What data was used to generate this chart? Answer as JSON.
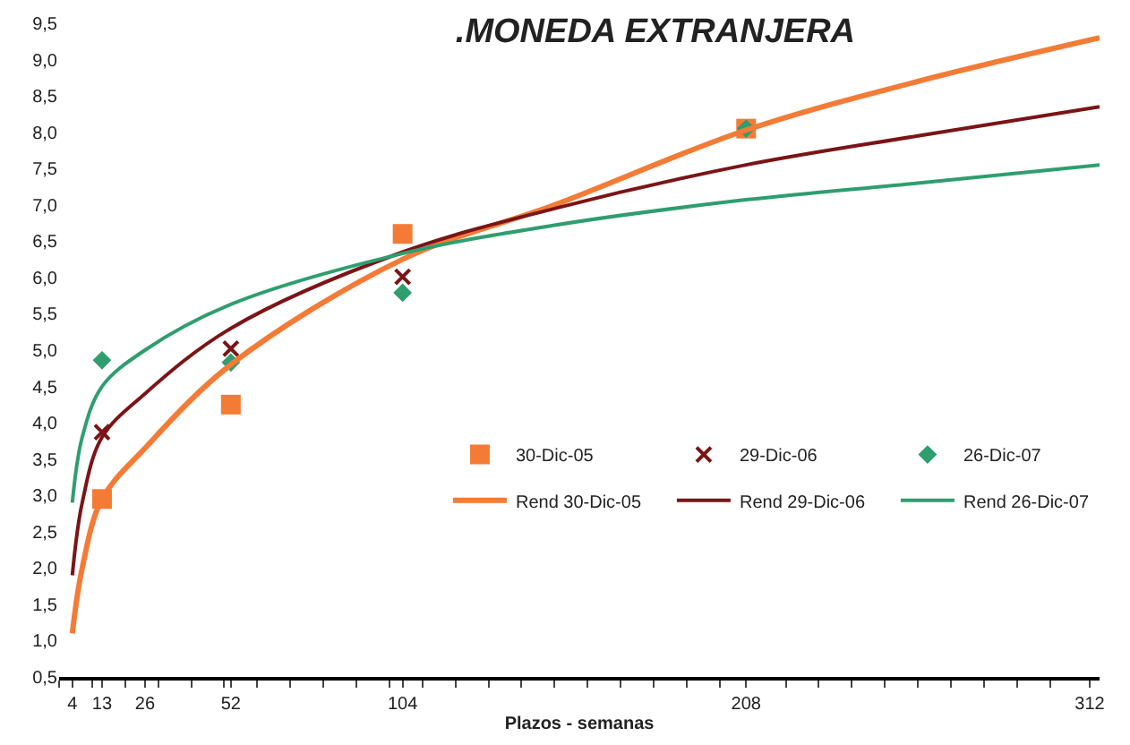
{
  "chart_data": {
    "type": "scatter",
    "title": ".MONEDA EXTRANJERA",
    "xlabel": "Plazos - semanas",
    "x": [
      13,
      52,
      104,
      208
    ],
    "xlim": [
      0,
      315
    ],
    "xticks": [
      {
        "value": 0,
        "label": null
      },
      4,
      {
        "value": 10,
        "label": null
      },
      13,
      {
        "value": 20,
        "label": null
      },
      26,
      {
        "value": 30,
        "label": null
      },
      {
        "value": 40,
        "label": null
      },
      {
        "value": 50,
        "label": null
      },
      52,
      {
        "value": 60,
        "label": null
      },
      {
        "value": 70,
        "label": null
      },
      {
        "value": 80,
        "label": null
      },
      {
        "value": 90,
        "label": null
      },
      {
        "value": 100,
        "label": null
      },
      104,
      {
        "value": 110,
        "label": null
      },
      {
        "value": 120,
        "label": null
      },
      {
        "value": 130,
        "label": null
      },
      {
        "value": 140,
        "label": null
      },
      {
        "value": 150,
        "label": null
      },
      {
        "value": 160,
        "label": null
      },
      {
        "value": 170,
        "label": null
      },
      {
        "value": 180,
        "label": null
      },
      {
        "value": 190,
        "label": null
      },
      {
        "value": 200,
        "label": null
      },
      208,
      {
        "value": 220,
        "label": null
      },
      {
        "value": 230,
        "label": null
      },
      {
        "value": 240,
        "label": null
      },
      {
        "value": 250,
        "label": null
      },
      {
        "value": 260,
        "label": null
      },
      {
        "value": 270,
        "label": null
      },
      {
        "value": 280,
        "label": null
      },
      {
        "value": 290,
        "label": null
      },
      {
        "value": 300,
        "label": null
      },
      312
    ],
    "ylim": [
      0.5,
      9.5
    ],
    "yticks": [
      {
        "value": 0.5,
        "label": "0,5"
      },
      {
        "value": 1,
        "label": "1,0"
      },
      {
        "value": 1.5,
        "label": "1,5"
      },
      {
        "value": 2,
        "label": "2,0"
      },
      {
        "value": 2.5,
        "label": "2,5"
      },
      {
        "value": 3,
        "label": "3,0"
      },
      {
        "value": 3.5,
        "label": "3,5"
      },
      {
        "value": 4,
        "label": "4,0"
      },
      {
        "value": 4.5,
        "label": "4,5"
      },
      {
        "value": 5,
        "label": "5,0"
      },
      {
        "value": 5.5,
        "label": "5,5"
      },
      {
        "value": 6,
        "label": "6,0"
      },
      {
        "value": 6.5,
        "label": "6,5"
      },
      {
        "value": 7,
        "label": "7,0"
      },
      {
        "value": 7.5,
        "label": "7,5"
      },
      {
        "value": 8,
        "label": "8,0"
      },
      {
        "value": 8.5,
        "label": "8,5"
      },
      {
        "value": 9,
        "label": "9,0"
      },
      {
        "value": 9.5,
        "label": "9,5"
      }
    ],
    "legend": "bottom right",
    "series": [
      {
        "name": "30-Dic-05",
        "marker": "square",
        "color": "#f47b36",
        "values": [
          2.95,
          4.25,
          6.6,
          8.05
        ]
      },
      {
        "name": "29-Dic-06",
        "marker": "cross",
        "color": "#7b1416",
        "values": [
          3.87,
          5.02,
          6.01,
          null
        ]
      },
      {
        "name": "26-Dic-07",
        "marker": "diamond",
        "color": "#2e9e6e",
        "values": [
          4.86,
          4.83,
          5.79,
          8.05
        ]
      },
      {
        "name": "Rend 30-Dic-05",
        "type": "line",
        "marker": "none",
        "color": "#f47b36",
        "x": [
          4,
          7,
          13,
          26,
          52,
          104,
          150,
          208,
          260,
          315
        ],
        "values": [
          1.1,
          2.0,
          2.95,
          3.65,
          4.8,
          6.25,
          7.0,
          8.03,
          8.7,
          9.3
        ]
      },
      {
        "name": "Rend 29-Dic-06",
        "type": "line",
        "marker": "none",
        "color": "#7b1416",
        "x": [
          4,
          7,
          13,
          26,
          52,
          104,
          150,
          208,
          260,
          315
        ],
        "values": [
          1.9,
          2.9,
          3.8,
          4.4,
          5.3,
          6.35,
          6.95,
          7.55,
          7.95,
          8.35
        ]
      },
      {
        "name": "Rend 26-Dic-07",
        "type": "line",
        "marker": "none",
        "color": "#2e9e6e",
        "x": [
          4,
          7,
          13,
          26,
          52,
          104,
          150,
          208,
          260,
          315
        ],
        "values": [
          2.9,
          3.8,
          4.5,
          5.0,
          5.63,
          6.33,
          6.72,
          7.07,
          7.3,
          7.55
        ]
      }
    ]
  }
}
